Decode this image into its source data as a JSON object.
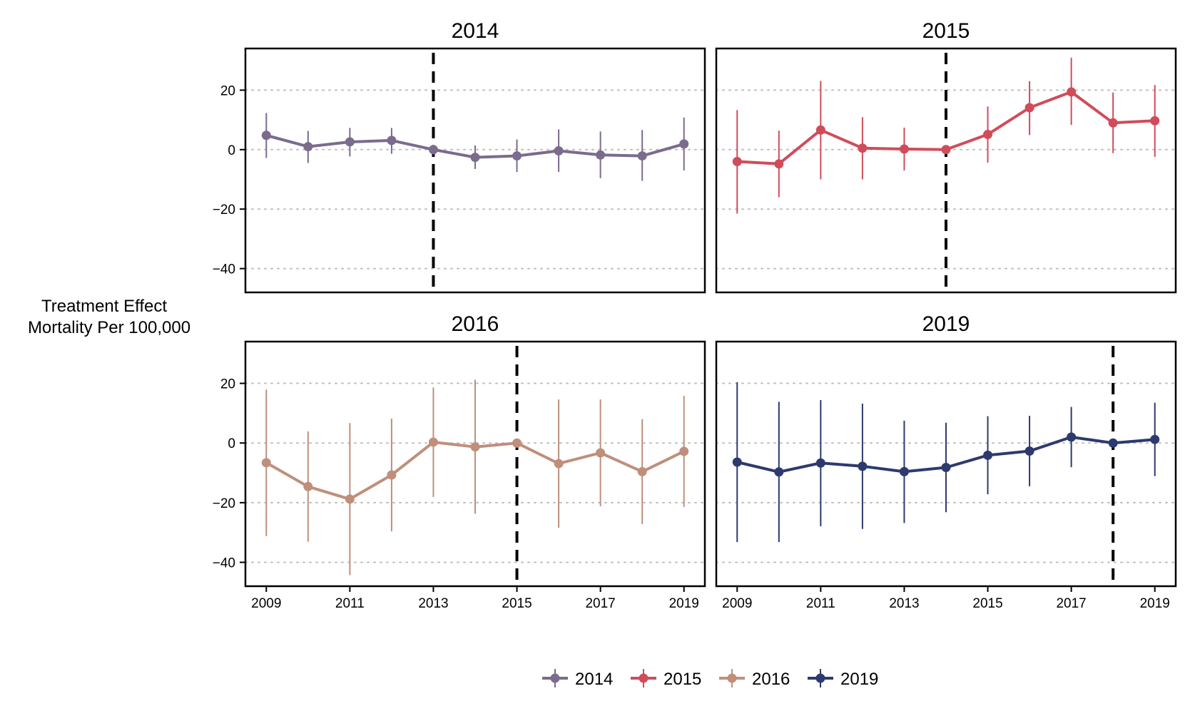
{
  "chart_data": {
    "type": "line",
    "ylabel_lines": [
      "Treatment Effect",
      "Mortality Per 100,000"
    ],
    "x_ticks": [
      "2009",
      "2011",
      "2013",
      "2015",
      "2017",
      "2019"
    ],
    "y_ticks": [
      "20",
      "0",
      "−20",
      "−40"
    ],
    "ylim": [
      -48,
      34
    ],
    "xlim": [
      2008.5,
      2019.5
    ],
    "grid_y": [
      20,
      0,
      -20,
      -40
    ],
    "legend_position": "bottom",
    "panels": [
      {
        "title": "2014",
        "series": "2014",
        "color": "#7b6b8d",
        "treatment_year": 2013,
        "x": [
          2009,
          2010,
          2011,
          2012,
          2013,
          2014,
          2015,
          2016,
          2017,
          2018,
          2019
        ],
        "y": [
          4.8,
          1.0,
          2.6,
          3.1,
          0.0,
          -2.6,
          -2.1,
          -0.4,
          -1.8,
          -2.1,
          1.9
        ],
        "lower": [
          -2.8,
          -4.5,
          -2.3,
          -1.4,
          -1.6,
          -6.5,
          -7.5,
          -7.5,
          -9.6,
          -10.5,
          -7.0
        ],
        "upper": [
          12.3,
          6.3,
          7.3,
          7.3,
          1.6,
          1.4,
          3.4,
          6.8,
          6.1,
          6.6,
          10.8
        ]
      },
      {
        "title": "2015",
        "series": "2015",
        "color": "#d04c5a",
        "treatment_year": 2014,
        "x": [
          2009,
          2010,
          2011,
          2012,
          2013,
          2014,
          2015,
          2016,
          2017,
          2018,
          2019
        ],
        "y": [
          -4.0,
          -4.8,
          6.6,
          0.5,
          0.2,
          0.0,
          5.1,
          14.1,
          19.4,
          9.0,
          9.7
        ],
        "lower": [
          -21.5,
          -16.0,
          -10.0,
          -10.0,
          -7.0,
          -1.2,
          -4.4,
          4.9,
          8.3,
          -1.2,
          -2.4
        ],
        "upper": [
          13.3,
          6.4,
          23.1,
          10.9,
          7.4,
          1.2,
          14.5,
          23.0,
          30.9,
          19.2,
          21.7
        ]
      },
      {
        "title": "2016",
        "series": "2016",
        "color": "#bf8f7c",
        "treatment_year": 2015,
        "x": [
          2009,
          2010,
          2011,
          2012,
          2013,
          2014,
          2015,
          2016,
          2017,
          2018,
          2019
        ],
        "y": [
          -6.6,
          -14.6,
          -18.8,
          -10.7,
          0.3,
          -1.3,
          0.0,
          -6.9,
          -3.3,
          -9.6,
          -2.8
        ],
        "lower": [
          -31.2,
          -33.1,
          -44.3,
          -29.6,
          -18.1,
          -23.7,
          -1.2,
          -28.4,
          -21.2,
          -27.2,
          -21.4
        ],
        "upper": [
          17.9,
          3.9,
          6.7,
          8.2,
          18.6,
          21.2,
          1.2,
          14.6,
          14.6,
          8.0,
          15.8
        ]
      },
      {
        "title": "2019",
        "series": "2019",
        "color": "#2c3a6e",
        "treatment_year": 2018,
        "x": [
          2009,
          2010,
          2011,
          2012,
          2013,
          2014,
          2015,
          2016,
          2017,
          2018,
          2019
        ],
        "y": [
          -6.4,
          -9.7,
          -6.7,
          -7.8,
          -9.6,
          -8.2,
          -4.1,
          -2.7,
          2.0,
          0.0,
          1.2
        ],
        "lower": [
          -33.2,
          -33.2,
          -27.9,
          -28.8,
          -26.8,
          -23.2,
          -17.2,
          -14.5,
          -8.1,
          -1.2,
          -11.1
        ],
        "upper": [
          20.4,
          13.8,
          14.4,
          13.2,
          7.5,
          6.8,
          9.0,
          9.1,
          12.1,
          1.2,
          13.5
        ]
      }
    ],
    "legend": [
      {
        "label": "2014",
        "color": "#7b6b8d"
      },
      {
        "label": "2015",
        "color": "#d04c5a"
      },
      {
        "label": "2016",
        "color": "#bf8f7c"
      },
      {
        "label": "2019",
        "color": "#2c3a6e"
      }
    ]
  }
}
